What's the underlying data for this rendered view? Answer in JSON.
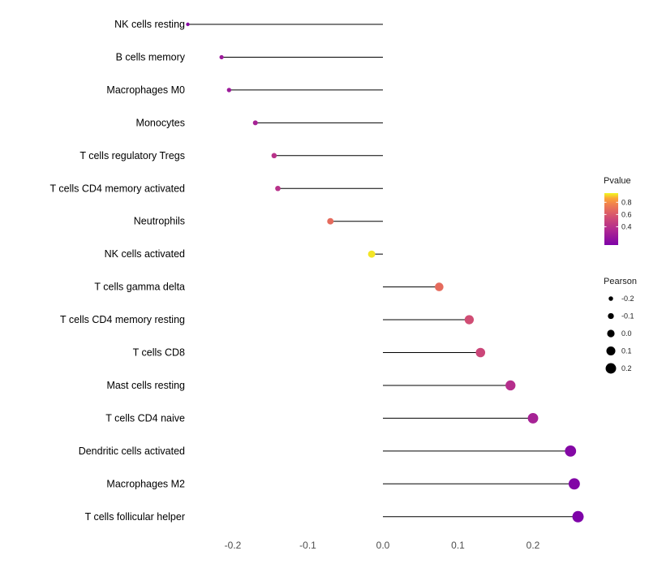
{
  "chart_data": {
    "type": "scatter",
    "variant": "lollipop",
    "title": "",
    "xlabel": "",
    "ylabel": "",
    "x_ticks": [
      "-0.2",
      "-0.1",
      "0.0",
      "0.1",
      "0.2"
    ],
    "x_tick_values": [
      -0.2,
      -0.1,
      0.0,
      0.1,
      0.2
    ],
    "xlim": [
      -0.27,
      0.285
    ],
    "grid": "off",
    "points": [
      {
        "label": "NK cells resting",
        "pearson": -0.26,
        "pvalue": 0.15
      },
      {
        "label": "B cells memory",
        "pearson": -0.215,
        "pvalue": 0.25
      },
      {
        "label": "Macrophages M0",
        "pearson": -0.205,
        "pvalue": 0.25
      },
      {
        "label": "Monocytes",
        "pearson": -0.17,
        "pvalue": 0.3
      },
      {
        "label": "T cells regulatory  Tregs",
        "pearson": -0.145,
        "pvalue": 0.4
      },
      {
        "label": "T cells CD4 memory activated",
        "pearson": -0.14,
        "pvalue": 0.4
      },
      {
        "label": "Neutrophils",
        "pearson": -0.07,
        "pvalue": 0.68
      },
      {
        "label": "NK cells activated",
        "pearson": -0.015,
        "pvalue": 0.93
      },
      {
        "label": "T cells gamma delta",
        "pearson": 0.075,
        "pvalue": 0.68
      },
      {
        "label": "T cells CD4 memory resting",
        "pearson": 0.115,
        "pvalue": 0.55
      },
      {
        "label": "T cells CD8",
        "pearson": 0.13,
        "pvalue": 0.52
      },
      {
        "label": "Mast cells resting",
        "pearson": 0.17,
        "pvalue": 0.38
      },
      {
        "label": "T cells CD4 naive",
        "pearson": 0.2,
        "pvalue": 0.3
      },
      {
        "label": "Dendritic cells activated",
        "pearson": 0.25,
        "pvalue": 0.13
      },
      {
        "label": "Macrophages M2",
        "pearson": 0.255,
        "pvalue": 0.12
      },
      {
        "label": "T cells follicular helper",
        "pearson": 0.26,
        "pvalue": 0.1
      }
    ],
    "legend_pvalue": {
      "title": "Pvalue",
      "ticks": [
        "0.8",
        "0.6",
        "0.4"
      ],
      "tick_values": [
        0.8,
        0.6,
        0.4
      ],
      "domain": [
        0.1,
        0.95
      ],
      "colors_low_to_high": [
        "#7e03a8",
        "#b12a90",
        "#cc4778",
        "#e16462",
        "#f2844b",
        "#fca636",
        "#f0f921"
      ]
    },
    "legend_pearson": {
      "title": "Pearson",
      "ticks": [
        "-0.2",
        "-0.1",
        "0.0",
        "0.1",
        "0.2"
      ],
      "tick_values": [
        -0.2,
        -0.1,
        0.0,
        0.1,
        0.2
      ],
      "dot_color": "#000000"
    },
    "segment_color": "#000000",
    "axis_text_color": "#4d4d4d",
    "label_text_color": "#000000"
  }
}
